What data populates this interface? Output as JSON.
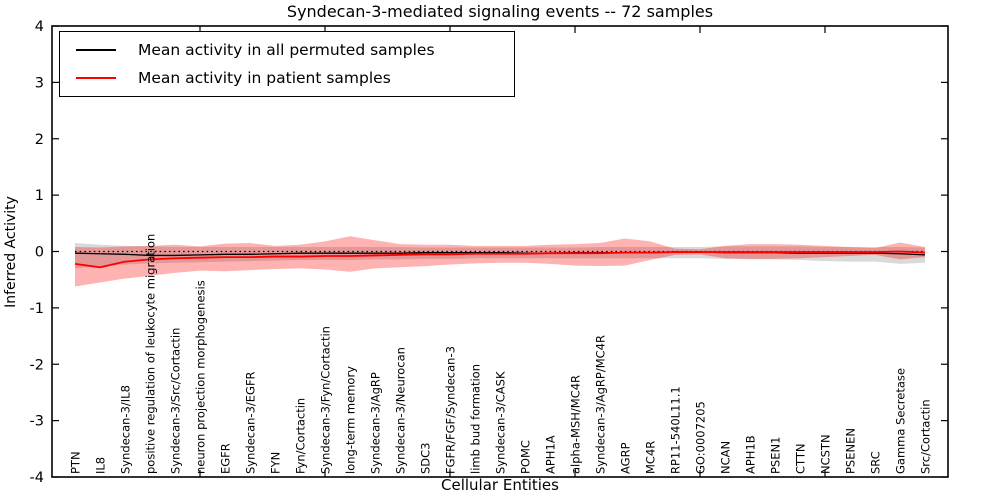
{
  "figure": {
    "title": "Syndecan-3-mediated signaling events -- 72 samples",
    "xlabel": "Cellular Entities",
    "ylabel": "Inferred Activity",
    "legend": {
      "entries": [
        {
          "label": "Mean activity in all permuted samples",
          "color": "#000000"
        },
        {
          "label": "Mean activity in patient samples",
          "color": "#ff0000"
        }
      ]
    }
  },
  "chart_data": {
    "type": "line",
    "title": "Syndecan-3-mediated signaling events -- 72 samples",
    "xlabel": "Cellular Entities",
    "ylabel": "Inferred Activity",
    "ylim": [
      -4,
      4
    ],
    "yticks": [
      -4,
      -3,
      -2,
      -1,
      0,
      1,
      2,
      3,
      4
    ],
    "xtick_minor_indices": [
      5,
      10,
      15,
      20,
      25,
      30
    ],
    "grid": false,
    "zero_line_style": "dotted",
    "legend_position": "upper left",
    "categories": [
      "PTN",
      "IL8",
      "Syndecan-3/IL8",
      "positive regulation of leukocyte migration",
      "Syndecan-3/Src/Cortactin",
      "neuron projection morphogenesis",
      "EGFR",
      "Syndecan-3/EGFR",
      "FYN",
      "Fyn/Cortactin",
      "Syndecan-3/Fyn/Cortactin",
      "long-term memory",
      "Syndecan-3/AgRP",
      "Syndecan-3/Neurocan",
      "SDC3",
      "FGFR/FGF/Syndecan-3",
      "limb bud formation",
      "Syndecan-3/CASK",
      "POMC",
      "APH1A",
      "alpha-MSH/MC4R",
      "Syndecan-3/AgRP/MC4R",
      "AGRP",
      "MC4R",
      "RP11-540L11.1",
      "GO:0007205",
      "NCAN",
      "APH1B",
      "PSEN1",
      "CTTN",
      "NCSTN",
      "PSENEN",
      "SRC",
      "Gamma Secretase",
      "Src/Cortactin"
    ],
    "series": [
      {
        "name": "Mean activity in all permuted samples",
        "color": "#000000",
        "line_width": 1.3,
        "band_color": "rgba(130,130,130,0.30)",
        "values": [
          -0.03,
          -0.04,
          -0.05,
          -0.07,
          -0.07,
          -0.06,
          -0.05,
          -0.05,
          -0.04,
          -0.03,
          -0.03,
          -0.03,
          -0.03,
          -0.03,
          -0.02,
          -0.02,
          -0.02,
          -0.02,
          -0.03,
          -0.03,
          -0.02,
          -0.02,
          -0.02,
          -0.02,
          -0.01,
          -0.01,
          -0.02,
          -0.02,
          -0.02,
          -0.03,
          -0.03,
          -0.03,
          -0.03,
          -0.04,
          -0.06
        ],
        "band_upper": [
          0.15,
          0.12,
          0.1,
          0.09,
          0.08,
          0.08,
          0.08,
          0.08,
          0.08,
          0.08,
          0.08,
          0.08,
          0.08,
          0.08,
          0.07,
          0.07,
          0.07,
          0.07,
          0.07,
          0.07,
          0.07,
          0.08,
          0.08,
          0.08,
          0.08,
          0.08,
          0.09,
          0.09,
          0.09,
          0.09,
          0.08,
          0.08,
          0.08,
          0.08,
          0.07
        ],
        "band_lower": [
          -0.3,
          -0.26,
          -0.23,
          -0.21,
          -0.2,
          -0.19,
          -0.18,
          -0.17,
          -0.16,
          -0.15,
          -0.15,
          -0.15,
          -0.14,
          -0.14,
          -0.13,
          -0.13,
          -0.12,
          -0.12,
          -0.12,
          -0.12,
          -0.12,
          -0.12,
          -0.12,
          -0.12,
          -0.12,
          -0.12,
          -0.13,
          -0.14,
          -0.14,
          -0.15,
          -0.17,
          -0.18,
          -0.18,
          -0.22,
          -0.2
        ]
      },
      {
        "name": "Mean activity in patient samples",
        "color": "#ff0000",
        "line_width": 1.8,
        "band_color": "rgba(255,0,0,0.30)",
        "values": [
          -0.22,
          -0.28,
          -0.18,
          -0.14,
          -0.12,
          -0.11,
          -0.1,
          -0.1,
          -0.09,
          -0.09,
          -0.08,
          -0.08,
          -0.07,
          -0.06,
          -0.05,
          -0.05,
          -0.04,
          -0.04,
          -0.04,
          -0.03,
          -0.03,
          -0.03,
          -0.02,
          -0.02,
          -0.01,
          -0.01,
          -0.01,
          -0.01,
          -0.01,
          -0.01,
          -0.01,
          -0.01,
          -0.01,
          0.0,
          -0.02
        ],
        "band_upper": [
          0.08,
          0.07,
          0.09,
          0.1,
          0.12,
          0.09,
          0.14,
          0.15,
          0.1,
          0.12,
          0.18,
          0.27,
          0.2,
          0.13,
          0.12,
          0.12,
          0.1,
          0.1,
          0.1,
          0.12,
          0.13,
          0.15,
          0.23,
          0.18,
          0.05,
          0.04,
          0.1,
          0.13,
          0.13,
          0.12,
          0.1,
          0.08,
          0.06,
          0.16,
          0.08
        ],
        "band_lower": [
          -0.62,
          -0.55,
          -0.48,
          -0.43,
          -0.38,
          -0.34,
          -0.35,
          -0.33,
          -0.31,
          -0.3,
          -0.32,
          -0.36,
          -0.3,
          -0.28,
          -0.26,
          -0.23,
          -0.21,
          -0.2,
          -0.2,
          -0.22,
          -0.25,
          -0.26,
          -0.25,
          -0.15,
          -0.06,
          -0.05,
          -0.12,
          -0.13,
          -0.13,
          -0.12,
          -0.1,
          -0.08,
          -0.06,
          -0.14,
          -0.1
        ]
      }
    ]
  }
}
